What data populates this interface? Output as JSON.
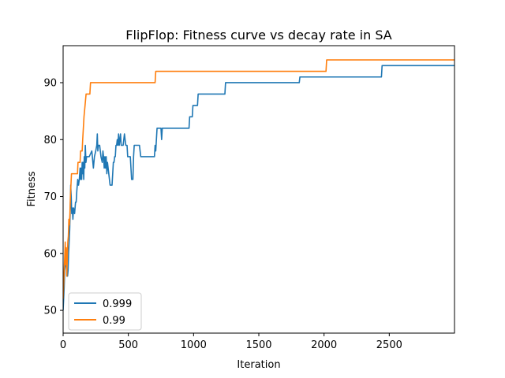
{
  "chart_data": {
    "type": "line",
    "title": "FlipFlop: Fitness curve vs decay rate in SA",
    "xlabel": "Iteration",
    "ylabel": "Fitness",
    "xlim": [
      0,
      3000
    ],
    "ylim": [
      46,
      96.5
    ],
    "xticks": [
      0,
      500,
      1000,
      1500,
      2000,
      2500
    ],
    "yticks": [
      50,
      60,
      70,
      80,
      90
    ],
    "grid": false,
    "legend_position": "lower-left",
    "series": [
      {
        "name": "0.999",
        "color": "#1f77b4",
        "points": [
          [
            0,
            50
          ],
          [
            8,
            54
          ],
          [
            12,
            57
          ],
          [
            18,
            58
          ],
          [
            22,
            60
          ],
          [
            26,
            58
          ],
          [
            30,
            57
          ],
          [
            34,
            56
          ],
          [
            38,
            57
          ],
          [
            42,
            60
          ],
          [
            46,
            62
          ],
          [
            50,
            64
          ],
          [
            55,
            68
          ],
          [
            58,
            72
          ],
          [
            62,
            70
          ],
          [
            66,
            67
          ],
          [
            70,
            68
          ],
          [
            75,
            66
          ],
          [
            80,
            68
          ],
          [
            88,
            67
          ],
          [
            95,
            69
          ],
          [
            100,
            69
          ],
          [
            105,
            71
          ],
          [
            112,
            73
          ],
          [
            118,
            72
          ],
          [
            124,
            73
          ],
          [
            130,
            75
          ],
          [
            134,
            73
          ],
          [
            138,
            75
          ],
          [
            142,
            73
          ],
          [
            146,
            76
          ],
          [
            150,
            74
          ],
          [
            154,
            76
          ],
          [
            158,
            73
          ],
          [
            162,
            77
          ],
          [
            166,
            75
          ],
          [
            170,
            79
          ],
          [
            175,
            76
          ],
          [
            180,
            77
          ],
          [
            200,
            77
          ],
          [
            220,
            78
          ],
          [
            232,
            75
          ],
          [
            240,
            77
          ],
          [
            250,
            78
          ],
          [
            258,
            79
          ],
          [
            262,
            81
          ],
          [
            266,
            78
          ],
          [
            270,
            79
          ],
          [
            280,
            79
          ],
          [
            290,
            77
          ],
          [
            300,
            76
          ],
          [
            305,
            78
          ],
          [
            310,
            77
          ],
          [
            315,
            75
          ],
          [
            320,
            77
          ],
          [
            325,
            75
          ],
          [
            330,
            77
          ],
          [
            335,
            74
          ],
          [
            340,
            76
          ],
          [
            350,
            74
          ],
          [
            355,
            73
          ],
          [
            360,
            72
          ],
          [
            375,
            72
          ],
          [
            380,
            74
          ],
          [
            385,
            76
          ],
          [
            390,
            76
          ],
          [
            395,
            77
          ],
          [
            400,
            77
          ],
          [
            405,
            79
          ],
          [
            410,
            79
          ],
          [
            415,
            80
          ],
          [
            420,
            79
          ],
          [
            425,
            81
          ],
          [
            430,
            79
          ],
          [
            435,
            80
          ],
          [
            440,
            81
          ],
          [
            445,
            79
          ],
          [
            460,
            79
          ],
          [
            470,
            81
          ],
          [
            480,
            79
          ],
          [
            490,
            79
          ],
          [
            495,
            77
          ],
          [
            515,
            77
          ],
          [
            520,
            75
          ],
          [
            525,
            73
          ],
          [
            535,
            73
          ],
          [
            540,
            77
          ],
          [
            545,
            79
          ],
          [
            560,
            79
          ],
          [
            585,
            79
          ],
          [
            595,
            77
          ],
          [
            660,
            77
          ],
          [
            700,
            77
          ],
          [
            705,
            79
          ],
          [
            710,
            78
          ],
          [
            715,
            80
          ],
          [
            720,
            82
          ],
          [
            750,
            82
          ],
          [
            755,
            80
          ],
          [
            760,
            82
          ],
          [
            965,
            82
          ],
          [
            970,
            84
          ],
          [
            990,
            84
          ],
          [
            995,
            86
          ],
          [
            1030,
            86
          ],
          [
            1035,
            88
          ],
          [
            1240,
            88
          ],
          [
            1245,
            90
          ],
          [
            1810,
            90
          ],
          [
            1815,
            91
          ],
          [
            2440,
            91
          ],
          [
            2445,
            93
          ],
          [
            3000,
            93
          ]
        ]
      },
      {
        "name": "0.99",
        "color": "#ff7f0e",
        "points": [
          [
            0,
            52
          ],
          [
            10,
            58
          ],
          [
            16,
            62
          ],
          [
            20,
            58
          ],
          [
            24,
            61
          ],
          [
            28,
            56
          ],
          [
            32,
            59
          ],
          [
            36,
            62
          ],
          [
            40,
            63
          ],
          [
            44,
            66
          ],
          [
            48,
            65
          ],
          [
            52,
            67
          ],
          [
            56,
            70
          ],
          [
            60,
            72
          ],
          [
            64,
            74
          ],
          [
            110,
            74
          ],
          [
            114,
            76
          ],
          [
            130,
            76
          ],
          [
            134,
            78
          ],
          [
            146,
            78
          ],
          [
            150,
            80
          ],
          [
            155,
            82
          ],
          [
            160,
            84
          ],
          [
            168,
            86
          ],
          [
            176,
            88
          ],
          [
            205,
            88
          ],
          [
            210,
            90
          ],
          [
            705,
            90
          ],
          [
            710,
            92
          ],
          [
            2015,
            92
          ],
          [
            2020,
            94
          ],
          [
            3000,
            94
          ]
        ]
      }
    ]
  }
}
